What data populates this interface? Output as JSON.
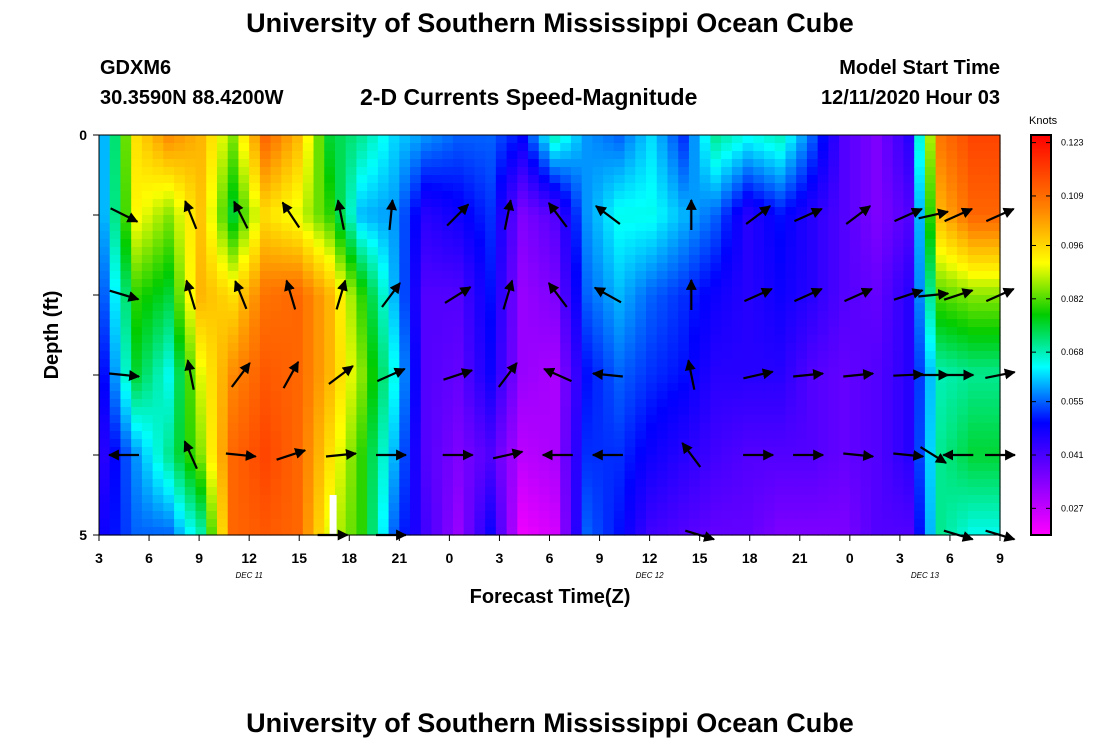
{
  "header": {
    "title": "University of Southern Mississippi Ocean Cube",
    "station": "GDXM6",
    "coords": "30.3590N 88.4200W",
    "product": "2-D Currents Speed-Magnitude",
    "start_label": "Model Start Time",
    "start_value": "12/11/2020 Hour 03"
  },
  "footer": {
    "title": "University of Southern Mississippi Ocean Cube"
  },
  "chart_data": {
    "type": "heatmap",
    "title": "2-D Currents Speed-Magnitude",
    "xlabel": "Forecast Time(Z)",
    "ylabel": "Depth (ft)",
    "units": "Knots",
    "x_start_hour": 3,
    "x_end_hour": 57,
    "x_ticks": [
      "3",
      "6",
      "9",
      "12",
      "15",
      "18",
      "21",
      "0",
      "3",
      "6",
      "9",
      "12",
      "15",
      "18",
      "21",
      "0",
      "3",
      "6",
      "9"
    ],
    "date_labels": [
      {
        "label": "DEC 11",
        "hour": 12
      },
      {
        "label": "DEC 12",
        "hour": 36
      },
      {
        "label": "DEC 13",
        "hour": 52.5
      }
    ],
    "y_ticks": [
      "0",
      "5"
    ],
    "ylim": [
      0,
      5
    ],
    "colorbar": {
      "min": 0.02,
      "max": 0.125,
      "ticks": [
        "0.123",
        "0.109",
        "0.096",
        "0.082",
        "0.068",
        "0.055",
        "0.041",
        "0.027"
      ],
      "tick_values": [
        0.123,
        0.109,
        0.096,
        0.082,
        0.068,
        0.055,
        0.041,
        0.027
      ]
    },
    "depth_rows": [
      0,
      1,
      2,
      3,
      4,
      5
    ],
    "speed_grid": [
      [
        0.06,
        0.095,
        0.105,
        0.1,
        0.085,
        0.11,
        0.1,
        0.075,
        0.07,
        0.062,
        0.058,
        0.055,
        0.055,
        0.05,
        0.068,
        0.058,
        0.055,
        0.062,
        0.052,
        0.07,
        0.065,
        0.068,
        0.055,
        0.04,
        0.035,
        0.045,
        0.108,
        0.115
      ],
      [
        0.06,
        0.092,
        0.085,
        0.098,
        0.075,
        0.095,
        0.09,
        0.08,
        0.06,
        0.058,
        0.045,
        0.048,
        0.052,
        0.035,
        0.04,
        0.058,
        0.065,
        0.065,
        0.06,
        0.055,
        0.045,
        0.05,
        0.045,
        0.04,
        0.035,
        0.04,
        0.1,
        0.11
      ],
      [
        0.055,
        0.08,
        0.075,
        0.1,
        0.095,
        0.108,
        0.11,
        0.1,
        0.08,
        0.06,
        0.04,
        0.04,
        0.05,
        0.032,
        0.035,
        0.055,
        0.06,
        0.055,
        0.052,
        0.048,
        0.045,
        0.048,
        0.045,
        0.04,
        0.038,
        0.045,
        0.082,
        0.085
      ],
      [
        0.05,
        0.075,
        0.065,
        0.09,
        0.105,
        0.112,
        0.11,
        0.1,
        0.085,
        0.065,
        0.04,
        0.038,
        0.048,
        0.032,
        0.03,
        0.05,
        0.055,
        0.052,
        0.05,
        0.045,
        0.045,
        0.045,
        0.04,
        0.038,
        0.04,
        0.045,
        0.068,
        0.07
      ],
      [
        0.045,
        0.058,
        0.07,
        0.085,
        0.11,
        0.115,
        0.11,
        0.095,
        0.08,
        0.06,
        0.04,
        0.035,
        0.04,
        0.028,
        0.03,
        0.052,
        0.052,
        0.048,
        0.045,
        0.042,
        0.04,
        0.04,
        0.04,
        0.038,
        0.04,
        0.045,
        0.07,
        0.075
      ],
      [
        0.048,
        0.055,
        0.055,
        0.068,
        0.11,
        0.112,
        0.11,
        0.09,
        0.08,
        0.055,
        0.042,
        0.032,
        0.048,
        0.022,
        0.025,
        0.055,
        0.05,
        0.042,
        0.04,
        0.038,
        0.038,
        0.035,
        0.035,
        0.035,
        0.04,
        0.04,
        0.07,
        0.065
      ]
    ],
    "vectors": [
      {
        "hour": 4.5,
        "depth": 1,
        "dx": 1,
        "dy": -0.5
      },
      {
        "hour": 8.5,
        "depth": 1,
        "dx": -0.4,
        "dy": 1
      },
      {
        "hour": 11.5,
        "depth": 1,
        "dx": -0.5,
        "dy": 1
      },
      {
        "hour": 14.5,
        "depth": 1,
        "dx": -0.6,
        "dy": 0.9
      },
      {
        "hour": 17.5,
        "depth": 1,
        "dx": -0.2,
        "dy": 1
      },
      {
        "hour": 20.5,
        "depth": 1,
        "dx": 0.1,
        "dy": 1
      },
      {
        "hour": 24.5,
        "depth": 1,
        "dx": 0.7,
        "dy": 0.7
      },
      {
        "hour": 27.5,
        "depth": 1,
        "dx": 0.2,
        "dy": 1
      },
      {
        "hour": 30.5,
        "depth": 1,
        "dx": -0.6,
        "dy": 0.8
      },
      {
        "hour": 33.5,
        "depth": 1,
        "dx": -0.8,
        "dy": 0.6
      },
      {
        "hour": 38.5,
        "depth": 1,
        "dx": 0,
        "dy": 1
      },
      {
        "hour": 42.5,
        "depth": 1,
        "dx": 0.8,
        "dy": 0.6
      },
      {
        "hour": 45.5,
        "depth": 1,
        "dx": 0.9,
        "dy": 0.4
      },
      {
        "hour": 48.5,
        "depth": 1,
        "dx": 0.8,
        "dy": 0.6
      },
      {
        "hour": 51.5,
        "depth": 1,
        "dx": 0.9,
        "dy": 0.4
      },
      {
        "hour": 53,
        "depth": 1,
        "dx": 0.9,
        "dy": 0.2
      },
      {
        "hour": 54.5,
        "depth": 1,
        "dx": 0.9,
        "dy": 0.4
      },
      {
        "hour": 57,
        "depth": 1,
        "dx": 0.9,
        "dy": 0.4
      },
      {
        "hour": 4.5,
        "depth": 2,
        "dx": 1,
        "dy": -0.3
      },
      {
        "hour": 8.5,
        "depth": 2,
        "dx": -0.3,
        "dy": 1
      },
      {
        "hour": 11.5,
        "depth": 2,
        "dx": -0.4,
        "dy": 1
      },
      {
        "hour": 14.5,
        "depth": 2,
        "dx": -0.3,
        "dy": 1
      },
      {
        "hour": 17.5,
        "depth": 2,
        "dx": 0.3,
        "dy": 1
      },
      {
        "hour": 20.5,
        "depth": 2,
        "dx": 0.6,
        "dy": 0.8
      },
      {
        "hour": 24.5,
        "depth": 2,
        "dx": 0.8,
        "dy": 0.5
      },
      {
        "hour": 27.5,
        "depth": 2,
        "dx": 0.3,
        "dy": 1
      },
      {
        "hour": 30.5,
        "depth": 2,
        "dx": -0.6,
        "dy": 0.8
      },
      {
        "hour": 33.5,
        "depth": 2,
        "dx": -0.9,
        "dy": 0.5
      },
      {
        "hour": 38.5,
        "depth": 2,
        "dx": 0,
        "dy": 1
      },
      {
        "hour": 42.5,
        "depth": 2,
        "dx": 0.9,
        "dy": 0.4
      },
      {
        "hour": 45.5,
        "depth": 2,
        "dx": 0.9,
        "dy": 0.4
      },
      {
        "hour": 48.5,
        "depth": 2,
        "dx": 0.9,
        "dy": 0.4
      },
      {
        "hour": 51.5,
        "depth": 2,
        "dx": 0.9,
        "dy": 0.3
      },
      {
        "hour": 53,
        "depth": 2,
        "dx": 1,
        "dy": 0.1
      },
      {
        "hour": 54.5,
        "depth": 2,
        "dx": 0.9,
        "dy": 0.3
      },
      {
        "hour": 57,
        "depth": 2,
        "dx": 0.9,
        "dy": 0.4
      },
      {
        "hour": 4.5,
        "depth": 3,
        "dx": 1,
        "dy": -0.1
      },
      {
        "hour": 8.5,
        "depth": 3,
        "dx": -0.2,
        "dy": 1
      },
      {
        "hour": 11.5,
        "depth": 3,
        "dx": 0.6,
        "dy": 0.8
      },
      {
        "hour": 14.5,
        "depth": 3,
        "dx": 0.5,
        "dy": 0.9
      },
      {
        "hour": 17.5,
        "depth": 3,
        "dx": 0.8,
        "dy": 0.6
      },
      {
        "hour": 20.5,
        "depth": 3,
        "dx": 0.9,
        "dy": 0.4
      },
      {
        "hour": 24.5,
        "depth": 3,
        "dx": 0.9,
        "dy": 0.3
      },
      {
        "hour": 27.5,
        "depth": 3,
        "dx": 0.6,
        "dy": 0.8
      },
      {
        "hour": 30.5,
        "depth": 3,
        "dx": -0.9,
        "dy": 0.4
      },
      {
        "hour": 33.5,
        "depth": 3,
        "dx": -1,
        "dy": 0.1
      },
      {
        "hour": 38.5,
        "depth": 3,
        "dx": -0.2,
        "dy": 1
      },
      {
        "hour": 42.5,
        "depth": 3,
        "dx": 0.9,
        "dy": 0.2
      },
      {
        "hour": 45.5,
        "depth": 3,
        "dx": 1,
        "dy": 0.1
      },
      {
        "hour": 48.5,
        "depth": 3,
        "dx": 1,
        "dy": 0.1
      },
      {
        "hour": 51.5,
        "depth": 3,
        "dx": 1,
        "dy": 0.05
      },
      {
        "hour": 53,
        "depth": 3,
        "dx": 1,
        "dy": 0
      },
      {
        "hour": 54.5,
        "depth": 3,
        "dx": 1,
        "dy": 0
      },
      {
        "hour": 57,
        "depth": 3,
        "dx": 1,
        "dy": 0.2
      },
      {
        "hour": 4.5,
        "depth": 4,
        "dx": -1,
        "dy": 0
      },
      {
        "hour": 8.5,
        "depth": 4,
        "dx": -0.4,
        "dy": 0.9
      },
      {
        "hour": 11.5,
        "depth": 4,
        "dx": 1,
        "dy": -0.1
      },
      {
        "hour": 14.5,
        "depth": 4,
        "dx": 0.9,
        "dy": 0.3
      },
      {
        "hour": 17.5,
        "depth": 4,
        "dx": 1,
        "dy": 0.1
      },
      {
        "hour": 20.5,
        "depth": 4,
        "dx": 1,
        "dy": 0
      },
      {
        "hour": 24.5,
        "depth": 4,
        "dx": 1,
        "dy": 0
      },
      {
        "hour": 27.5,
        "depth": 4,
        "dx": 0.9,
        "dy": 0.2
      },
      {
        "hour": 30.5,
        "depth": 4,
        "dx": -1,
        "dy": 0
      },
      {
        "hour": 33.5,
        "depth": 4,
        "dx": -1,
        "dy": 0
      },
      {
        "hour": 38.5,
        "depth": 4,
        "dx": -0.6,
        "dy": 0.8
      },
      {
        "hour": 42.5,
        "depth": 4,
        "dx": 1,
        "dy": 0
      },
      {
        "hour": 45.5,
        "depth": 4,
        "dx": 1,
        "dy": 0
      },
      {
        "hour": 48.5,
        "depth": 4,
        "dx": 1,
        "dy": -0.1
      },
      {
        "hour": 51.5,
        "depth": 4,
        "dx": 1,
        "dy": -0.1
      },
      {
        "hour": 53,
        "depth": 4,
        "dx": 0.8,
        "dy": -0.5
      },
      {
        "hour": 54.5,
        "depth": 4,
        "dx": -1,
        "dy": 0
      },
      {
        "hour": 57,
        "depth": 4,
        "dx": 1,
        "dy": 0
      },
      {
        "hour": 17,
        "depth": 5,
        "dx": 1,
        "dy": 0
      },
      {
        "hour": 20.5,
        "depth": 5,
        "dx": 1,
        "dy": 0
      },
      {
        "hour": 39,
        "depth": 5,
        "dx": 1,
        "dy": -0.3
      },
      {
        "hour": 54.5,
        "depth": 5,
        "dx": 1,
        "dy": -0.3
      },
      {
        "hour": 57,
        "depth": 5,
        "dx": 1,
        "dy": -0.3
      }
    ],
    "gaps": [
      {
        "hour": 17,
        "depth_from": 4,
        "depth_to": 5
      }
    ]
  }
}
